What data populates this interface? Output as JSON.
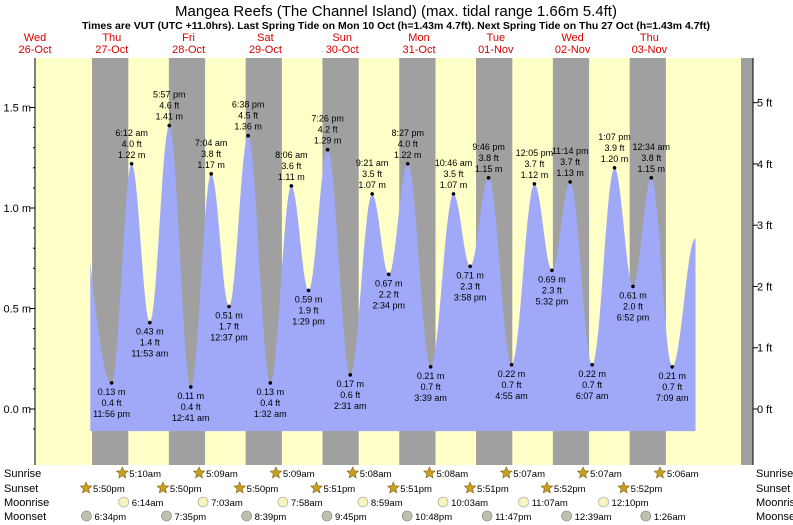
{
  "chart_data": {
    "type": "area",
    "title": "Mangea Reefs (The Channel Island) (max. tidal range 1.66m 5.4ft)",
    "subtitle": "Times are VUT (UTC +11.0hrs). Last Spring Tide on Mon 10 Oct (h=1.43m 4.7ft). Next Spring Tide on Thu 27 Oct (h=1.43m 4.7ft)",
    "days": [
      {
        "dow": "Wed",
        "date": "26-Oct"
      },
      {
        "dow": "Thu",
        "date": "27-Oct"
      },
      {
        "dow": "Fri",
        "date": "28-Oct"
      },
      {
        "dow": "Sat",
        "date": "29-Oct"
      },
      {
        "dow": "Sun",
        "date": "30-Oct"
      },
      {
        "dow": "Mon",
        "date": "31-Oct"
      },
      {
        "dow": "Tue",
        "date": "01-Nov"
      },
      {
        "dow": "Wed",
        "date": "02-Nov"
      },
      {
        "dow": "Thu",
        "date": "03-Nov"
      }
    ],
    "ylim_m": [
      -0.2,
      1.7
    ],
    "left_ticks": [
      {
        "v": 0.0,
        "label": "0.0 m"
      },
      {
        "v": 0.5,
        "label": "0.5 m"
      },
      {
        "v": 1.0,
        "label": "1.0 m"
      },
      {
        "v": 1.5,
        "label": "1.5 m"
      }
    ],
    "right_ticks": [
      {
        "v": 0,
        "label": "0 ft"
      },
      {
        "v": 1,
        "label": "1 ft"
      },
      {
        "v": 2,
        "label": "2 ft"
      },
      {
        "v": 3,
        "label": "3 ft"
      },
      {
        "v": 4,
        "label": "4 ft"
      },
      {
        "v": 5,
        "label": "5 ft"
      }
    ],
    "tides": [
      {
        "t": 0.414,
        "m": 1.43,
        "time": "",
        "ft": "",
        "mlabel": "",
        "type": "high",
        "labeled": false
      },
      {
        "t": 0.997,
        "m": 0.13,
        "time": "11:56 pm",
        "ft": "0.4 ft",
        "mlabel": "0.13 m",
        "type": "low",
        "labeled": true
      },
      {
        "t": 1.258,
        "m": 1.22,
        "time": "6:12 am",
        "ft": "4.0 ft",
        "mlabel": "1.22 m",
        "type": "high",
        "labeled": true
      },
      {
        "t": 1.495,
        "m": 0.43,
        "time": "11:53 am",
        "ft": "1.4 ft",
        "mlabel": "0.43 m",
        "type": "low",
        "labeled": true
      },
      {
        "t": 1.748,
        "m": 1.41,
        "time": "5:57 pm",
        "ft": "4.6 ft",
        "mlabel": "1.41 m",
        "type": "high",
        "labeled": true
      },
      {
        "t": 2.028,
        "m": 0.11,
        "time": "12:41 am",
        "ft": "0.4 ft",
        "mlabel": "0.11 m",
        "type": "low",
        "labeled": true
      },
      {
        "t": 2.294,
        "m": 1.17,
        "time": "7:04 am",
        "ft": "3.8 ft",
        "mlabel": "1.17 m",
        "type": "high",
        "labeled": true
      },
      {
        "t": 2.526,
        "m": 0.51,
        "time": "12:37 pm",
        "ft": "1.7 ft",
        "mlabel": "0.51 m",
        "type": "low",
        "labeled": true
      },
      {
        "t": 2.775,
        "m": 1.36,
        "time": "6:38 pm",
        "ft": "4.5 ft",
        "mlabel": "1.36 m",
        "type": "high",
        "labeled": true
      },
      {
        "t": 3.064,
        "m": 0.13,
        "time": "1:32 am",
        "ft": "0.4 ft",
        "mlabel": "0.13 m",
        "type": "low",
        "labeled": true
      },
      {
        "t": 3.338,
        "m": 1.11,
        "time": "8:06 am",
        "ft": "3.6 ft",
        "mlabel": "1.11 m",
        "type": "high",
        "labeled": true
      },
      {
        "t": 3.562,
        "m": 0.59,
        "time": "1:29 pm",
        "ft": "1.9 ft",
        "mlabel": "0.59 m",
        "type": "low",
        "labeled": true
      },
      {
        "t": 3.81,
        "m": 1.29,
        "time": "7:26 pm",
        "ft": "4.2 ft",
        "mlabel": "1.29 m",
        "type": "high",
        "labeled": true
      },
      {
        "t": 4.105,
        "m": 0.17,
        "time": "2:31 am",
        "ft": "0.6 ft",
        "mlabel": "0.17 m",
        "type": "low",
        "labeled": true
      },
      {
        "t": 4.39,
        "m": 1.07,
        "time": "9:21 am",
        "ft": "3.5 ft",
        "mlabel": "1.07 m",
        "type": "high",
        "labeled": true
      },
      {
        "t": 4.606,
        "m": 0.67,
        "time": "2:34 pm",
        "ft": "2.2 ft",
        "mlabel": "0.67 m",
        "type": "low",
        "labeled": true
      },
      {
        "t": 4.853,
        "m": 1.22,
        "time": "8:27 pm",
        "ft": "4.0 ft",
        "mlabel": "1.22 m",
        "type": "high",
        "labeled": true
      },
      {
        "t": 5.152,
        "m": 0.21,
        "time": "3:39 am",
        "ft": "0.7 ft",
        "mlabel": "0.21 m",
        "type": "low",
        "labeled": true
      },
      {
        "t": 5.449,
        "m": 1.07,
        "time": "10:46 am",
        "ft": "3.5 ft",
        "mlabel": "1.07 m",
        "type": "high",
        "labeled": true
      },
      {
        "t": 5.666,
        "m": 0.71,
        "time": "3:58 pm",
        "ft": "2.3 ft",
        "mlabel": "0.71 m",
        "type": "low",
        "labeled": true
      },
      {
        "t": 5.906,
        "m": 1.15,
        "time": "9:46 pm",
        "ft": "3.8 ft",
        "mlabel": "1.15 m",
        "type": "high",
        "labeled": true
      },
      {
        "t": 6.205,
        "m": 0.22,
        "time": "4:55 am",
        "ft": "0.7 ft",
        "mlabel": "0.22 m",
        "type": "low",
        "labeled": true
      },
      {
        "t": 6.503,
        "m": 1.12,
        "time": "12:05 pm",
        "ft": "3.7 ft",
        "mlabel": "1.12 m",
        "type": "high",
        "labeled": true
      },
      {
        "t": 6.731,
        "m": 0.69,
        "time": "5:32 pm",
        "ft": "2.3 ft",
        "mlabel": "0.69 m",
        "type": "low",
        "labeled": true
      },
      {
        "t": 6.968,
        "m": 1.13,
        "time": "11:14 pm",
        "ft": "3.7 ft",
        "mlabel": "1.13 m",
        "type": "high",
        "labeled": true
      },
      {
        "t": 7.255,
        "m": 0.22,
        "time": "6:07 am",
        "ft": "0.7 ft",
        "mlabel": "0.22 m",
        "type": "low",
        "labeled": true
      },
      {
        "t": 7.546,
        "m": 1.2,
        "time": "1:07 pm",
        "ft": "3.9 ft",
        "mlabel": "1.20 m",
        "type": "high",
        "labeled": true
      },
      {
        "t": 7.786,
        "m": 0.61,
        "time": "6:52 pm",
        "ft": "2.0 ft",
        "mlabel": "0.61 m",
        "type": "low",
        "labeled": true
      },
      {
        "t": 8.024,
        "m": 1.15,
        "time": "12:34 am",
        "ft": "3.8 ft",
        "mlabel": "1.15 m",
        "type": "high",
        "labeled": true
      },
      {
        "t": 8.297,
        "m": 0.21,
        "time": "7:09 am",
        "ft": "0.7 ft",
        "mlabel": "0.21 m",
        "type": "low",
        "labeled": true
      },
      {
        "t": 8.6,
        "m": 0.85,
        "time": "",
        "ft": "",
        "mlabel": "",
        "type": "high",
        "labeled": false
      }
    ],
    "sunrise": [
      {
        "t": 1.215,
        "time": "5:10am"
      },
      {
        "t": 2.215,
        "time": "5:09am"
      },
      {
        "t": 3.215,
        "time": "5:09am"
      },
      {
        "t": 4.215,
        "time": "5:08am"
      },
      {
        "t": 5.215,
        "time": "5:08am"
      },
      {
        "t": 6.215,
        "time": "5:07am"
      },
      {
        "t": 7.215,
        "time": "5:07am"
      },
      {
        "t": 8.215,
        "time": "5:06am"
      }
    ],
    "sunset": [
      {
        "t": 0.743,
        "time": "5:50pm"
      },
      {
        "t": 1.743,
        "time": "5:50pm"
      },
      {
        "t": 2.743,
        "time": "5:50pm"
      },
      {
        "t": 3.743,
        "time": "5:51pm"
      },
      {
        "t": 4.743,
        "time": "5:51pm"
      },
      {
        "t": 5.743,
        "time": "5:51pm"
      },
      {
        "t": 6.743,
        "time": "5:52pm"
      },
      {
        "t": 7.743,
        "time": "5:52pm"
      }
    ],
    "moonrise": [
      {
        "t": 1.26,
        "time": "6:14am"
      },
      {
        "t": 2.293,
        "time": "7:03am"
      },
      {
        "t": 3.332,
        "time": "7:58am"
      },
      {
        "t": 4.374,
        "time": "8:59am"
      },
      {
        "t": 5.418,
        "time": "10:03am"
      },
      {
        "t": 6.466,
        "time": "11:07am"
      },
      {
        "t": 7.507,
        "time": "12:10pm"
      }
    ],
    "moonset": [
      {
        "t": 0.774,
        "time": "6:34pm"
      },
      {
        "t": 1.816,
        "time": "7:35pm"
      },
      {
        "t": 2.86,
        "time": "8:39pm"
      },
      {
        "t": 3.906,
        "time": "9:45pm"
      },
      {
        "t": 4.95,
        "time": "10:48pm"
      },
      {
        "t": 5.991,
        "time": "11:47pm"
      },
      {
        "t": 7.026,
        "time": "12:39am"
      },
      {
        "t": 8.058,
        "time": "1:26am"
      }
    ],
    "row_labels": [
      "Sunrise",
      "Sunset",
      "Moonrise",
      "Moonset"
    ],
    "colors": {
      "day": "#ffffc8",
      "night": "#a0a0a0",
      "tide": "#a0a8f8",
      "date_text": "#d80000",
      "sun": "#c8a020",
      "moon": "#f8f4c0",
      "moonset_fill": "#c0c0b0"
    }
  }
}
